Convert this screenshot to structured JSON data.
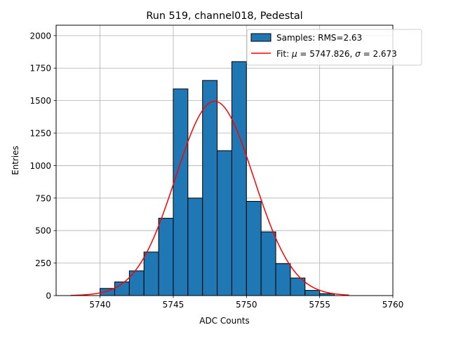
{
  "chart_data": {
    "type": "bar",
    "title": "Run 519, channel018, Pedestal",
    "xlabel": "ADC Counts",
    "ylabel": "Entries",
    "xlim": [
      5737,
      5760
    ],
    "ylim": [
      0,
      2080
    ],
    "xticks": [
      5740,
      5745,
      5750,
      5755,
      5760
    ],
    "yticks": [
      0,
      250,
      500,
      750,
      1000,
      1250,
      1500,
      1750,
      2000
    ],
    "grid": true,
    "legend_position": "top-right",
    "bar_color": "#1f77b4",
    "fit_color": "#ff0000",
    "histogram": {
      "name": "Samples: RMS=2.63",
      "bin_edges": [
        5740,
        5741,
        5742,
        5743,
        5744,
        5745,
        5746,
        5747,
        5748,
        5749,
        5750,
        5751,
        5752,
        5753,
        5754,
        5755,
        5756
      ],
      "counts": [
        55,
        105,
        190,
        335,
        595,
        1590,
        750,
        1655,
        1115,
        1800,
        725,
        490,
        245,
        135,
        40,
        15
      ]
    },
    "fit": {
      "name_prefix": "Fit: ",
      "name_mu": "μ",
      "name_mu_value": " = 5747.826, ",
      "name_sigma": "σ",
      "name_sigma_value": " = 2.673",
      "mu": 5747.826,
      "sigma": 2.673,
      "amplitude": 1495,
      "x_range": [
        5738,
        5757
      ]
    }
  }
}
